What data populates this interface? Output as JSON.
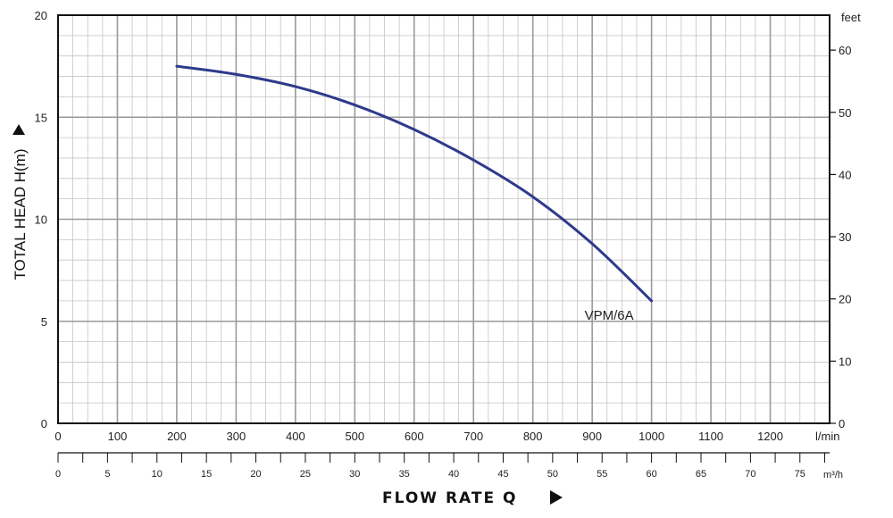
{
  "chart_data": {
    "type": "line",
    "title": "",
    "xlabel": "FLOW RATE Q",
    "ylabel": "TOTAL HEAD H(m)",
    "x_unit": "l/min",
    "x2_unit": "m³/h",
    "y2_unit": "feet",
    "xlim": [
      0,
      1300
    ],
    "ylim": [
      0,
      20
    ],
    "x_ticks": [
      "0",
      "100",
      "200",
      "300",
      "400",
      "500",
      "600",
      "700",
      "800",
      "900",
      "1000",
      "1100",
      "1200"
    ],
    "x2_ticks": [
      "0",
      "5",
      "10",
      "15",
      "20",
      "25",
      "30",
      "35",
      "40",
      "45",
      "50",
      "55",
      "60",
      "65",
      "70",
      "75"
    ],
    "y_ticks": [
      "0",
      "5",
      "10",
      "15",
      "20"
    ],
    "y2_ticks": [
      "0",
      "10",
      "20",
      "30",
      "40",
      "50",
      "60"
    ],
    "grid": true,
    "series": [
      {
        "name": "VPM/6A",
        "color": "#2e3a8c",
        "x": [
          200,
          300,
          400,
          500,
          600,
          700,
          800,
          900,
          1000
        ],
        "y": [
          17.5,
          17.1,
          16.5,
          15.6,
          14.4,
          12.9,
          11.1,
          8.8,
          6.0
        ]
      }
    ]
  }
}
